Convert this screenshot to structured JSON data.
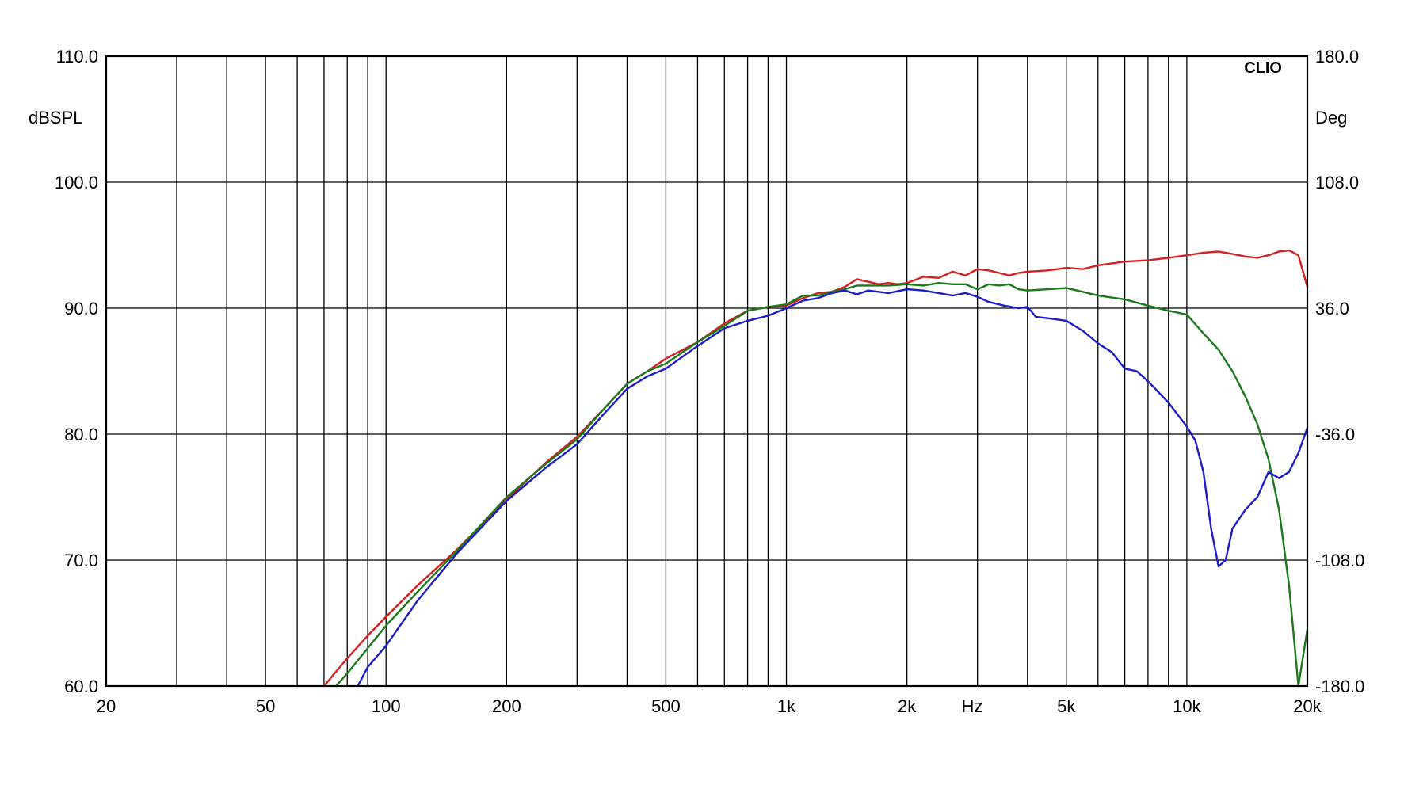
{
  "chart_data": {
    "type": "line",
    "brand": "CLIO",
    "xlabel": "Hz",
    "ylabel": "dBSPL",
    "y2label": "Deg",
    "xscale": "log",
    "xlim": [
      20,
      20000
    ],
    "ylim": [
      60,
      110
    ],
    "y2lim": [
      -180,
      180
    ],
    "grid": true,
    "x_ticks": [
      {
        "value": 20,
        "label": "20"
      },
      {
        "value": 50,
        "label": "50"
      },
      {
        "value": 100,
        "label": "100"
      },
      {
        "value": 200,
        "label": "200"
      },
      {
        "value": 500,
        "label": "500"
      },
      {
        "value": 1000,
        "label": "1k"
      },
      {
        "value": 2000,
        "label": "2k"
      },
      {
        "value": 5000,
        "label": "5k"
      },
      {
        "value": 10000,
        "label": "10k"
      },
      {
        "value": 20000,
        "label": "20k"
      }
    ],
    "y_ticks": [
      {
        "value": 110,
        "label": "110.0"
      },
      {
        "value": 100,
        "label": "100.0"
      },
      {
        "value": 90,
        "label": "90.0"
      },
      {
        "value": 80,
        "label": "80.0"
      },
      {
        "value": 70,
        "label": "70.0"
      },
      {
        "value": 60,
        "label": "60.0"
      }
    ],
    "y2_ticks": [
      {
        "value": 180,
        "label": "180.0"
      },
      {
        "value": 108,
        "label": "108.0"
      },
      {
        "value": 36,
        "label": "36.0"
      },
      {
        "value": -36,
        "label": "-36.0"
      },
      {
        "value": -108,
        "label": "-108.0"
      },
      {
        "value": -180,
        "label": "-180.0"
      }
    ],
    "series": [
      {
        "color": "#d42020",
        "x": [
          70,
          80,
          90,
          100,
          120,
          150,
          200,
          250,
          300,
          350,
          400,
          450,
          500,
          600,
          700,
          800,
          900,
          1000,
          1100,
          1200,
          1300,
          1400,
          1500,
          1600,
          1700,
          1800,
          1900,
          2000,
          2200,
          2400,
          2600,
          2800,
          3000,
          3200,
          3400,
          3600,
          3800,
          4000,
          4500,
          5000,
          5500,
          6000,
          7000,
          8000,
          9000,
          10000,
          11000,
          12000,
          13000,
          14000,
          15000,
          16000,
          17000,
          18000,
          19000,
          20000
        ],
        "y": [
          60.0,
          62.2,
          64.0,
          65.5,
          68.0,
          70.8,
          74.8,
          77.7,
          79.8,
          82.0,
          84.0,
          85.0,
          86.0,
          87.3,
          88.8,
          89.8,
          90.1,
          90.2,
          90.8,
          91.2,
          91.3,
          91.7,
          92.3,
          92.1,
          91.9,
          92.0,
          91.9,
          92.0,
          92.5,
          92.4,
          92.9,
          92.6,
          93.1,
          93.0,
          92.8,
          92.6,
          92.8,
          92.9,
          93.0,
          93.2,
          93.1,
          93.4,
          93.7,
          93.8,
          94.0,
          94.2,
          94.4,
          94.5,
          94.3,
          94.1,
          94.0,
          94.2,
          94.5,
          94.6,
          94.2,
          91.7
        ]
      },
      {
        "color": "#1a7a1a",
        "x": [
          75,
          80,
          90,
          100,
          120,
          150,
          200,
          250,
          300,
          350,
          400,
          450,
          500,
          600,
          700,
          800,
          900,
          1000,
          1100,
          1200,
          1300,
          1400,
          1500,
          1600,
          1800,
          2000,
          2200,
          2400,
          2600,
          2800,
          3000,
          3200,
          3400,
          3600,
          3800,
          4000,
          4500,
          5000,
          5500,
          6000,
          7000,
          8000,
          9000,
          10000,
          11000,
          12000,
          13000,
          14000,
          15000,
          16000,
          17000,
          18000,
          19000,
          20000
        ],
        "y": [
          60.0,
          61.0,
          63.0,
          64.8,
          67.5,
          70.7,
          75.0,
          77.6,
          79.6,
          82.0,
          84.0,
          85.0,
          85.6,
          87.3,
          88.6,
          89.8,
          90.1,
          90.3,
          91.0,
          91.0,
          91.3,
          91.5,
          91.8,
          91.8,
          91.8,
          91.9,
          91.8,
          92.0,
          91.9,
          91.9,
          91.5,
          91.9,
          91.8,
          91.9,
          91.5,
          91.4,
          91.5,
          91.6,
          91.3,
          91.0,
          90.7,
          90.2,
          89.8,
          89.5,
          88.0,
          86.7,
          85.0,
          83.0,
          80.8,
          78.0,
          74.0,
          68.0,
          60.0,
          64.5
        ]
      },
      {
        "color": "#1c1cc8",
        "x": [
          85,
          90,
          100,
          120,
          150,
          200,
          250,
          300,
          350,
          400,
          450,
          500,
          600,
          700,
          800,
          900,
          1000,
          1100,
          1200,
          1300,
          1400,
          1500,
          1600,
          1800,
          2000,
          2200,
          2400,
          2600,
          2800,
          3000,
          3200,
          3500,
          3800,
          4000,
          4200,
          4500,
          5000,
          5500,
          6000,
          6500,
          7000,
          7500,
          8000,
          9000,
          10000,
          10500,
          11000,
          11500,
          12000,
          12500,
          13000,
          14000,
          15000,
          16000,
          17000,
          18000,
          19000,
          20000
        ],
        "y": [
          60.0,
          61.5,
          63.2,
          66.8,
          70.5,
          74.7,
          77.3,
          79.2,
          81.6,
          83.6,
          84.6,
          85.2,
          87.0,
          88.4,
          89.0,
          89.4,
          90.0,
          90.6,
          90.8,
          91.2,
          91.4,
          91.1,
          91.4,
          91.2,
          91.5,
          91.4,
          91.2,
          91.0,
          91.2,
          90.9,
          90.5,
          90.2,
          90.0,
          90.1,
          89.3,
          89.2,
          89.0,
          88.2,
          87.2,
          86.5,
          85.2,
          85.0,
          84.2,
          82.5,
          80.6,
          79.5,
          77.0,
          72.5,
          69.5,
          70.0,
          72.5,
          74.0,
          75.0,
          77.0,
          76.5,
          77.0,
          78.5,
          80.5
        ]
      }
    ]
  }
}
